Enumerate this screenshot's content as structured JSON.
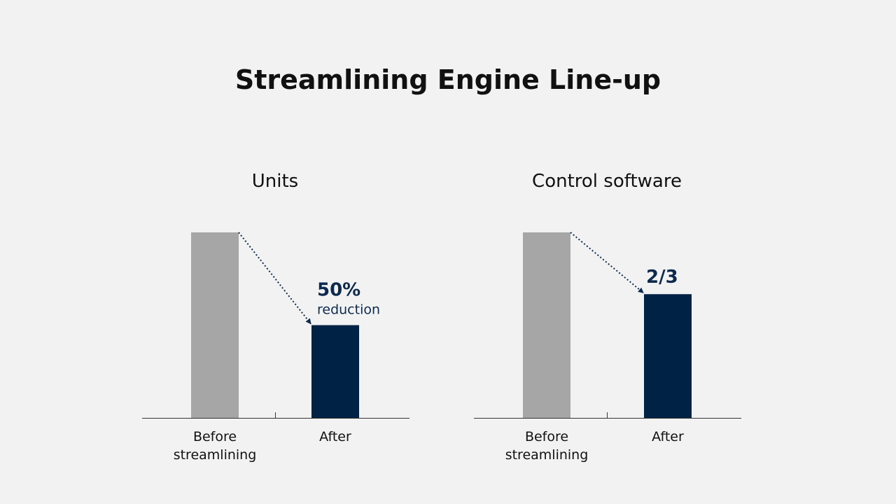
{
  "title": "Streamlining Engine Line-up",
  "colors": {
    "background": "#f2f2f2",
    "before_bar": "#a6a6a6",
    "after_bar": "#002245",
    "annotation": "#0d2a4d",
    "axis": "#333333"
  },
  "chart_data": [
    {
      "type": "bar",
      "title": "Units",
      "categories": [
        "Before\nstreamlining",
        "After"
      ],
      "values": [
        100,
        50
      ],
      "ylim": [
        0,
        100
      ],
      "grid": false,
      "legend": "none",
      "annotation": {
        "main": "50%",
        "sub": "reduction"
      }
    },
    {
      "type": "bar",
      "title": "Control software",
      "categories": [
        "Before\nstreamlining",
        "After"
      ],
      "values": [
        100,
        66.7
      ],
      "ylim": [
        0,
        100
      ],
      "grid": false,
      "legend": "none",
      "annotation": {
        "main": "2/3",
        "sub": ""
      }
    }
  ]
}
